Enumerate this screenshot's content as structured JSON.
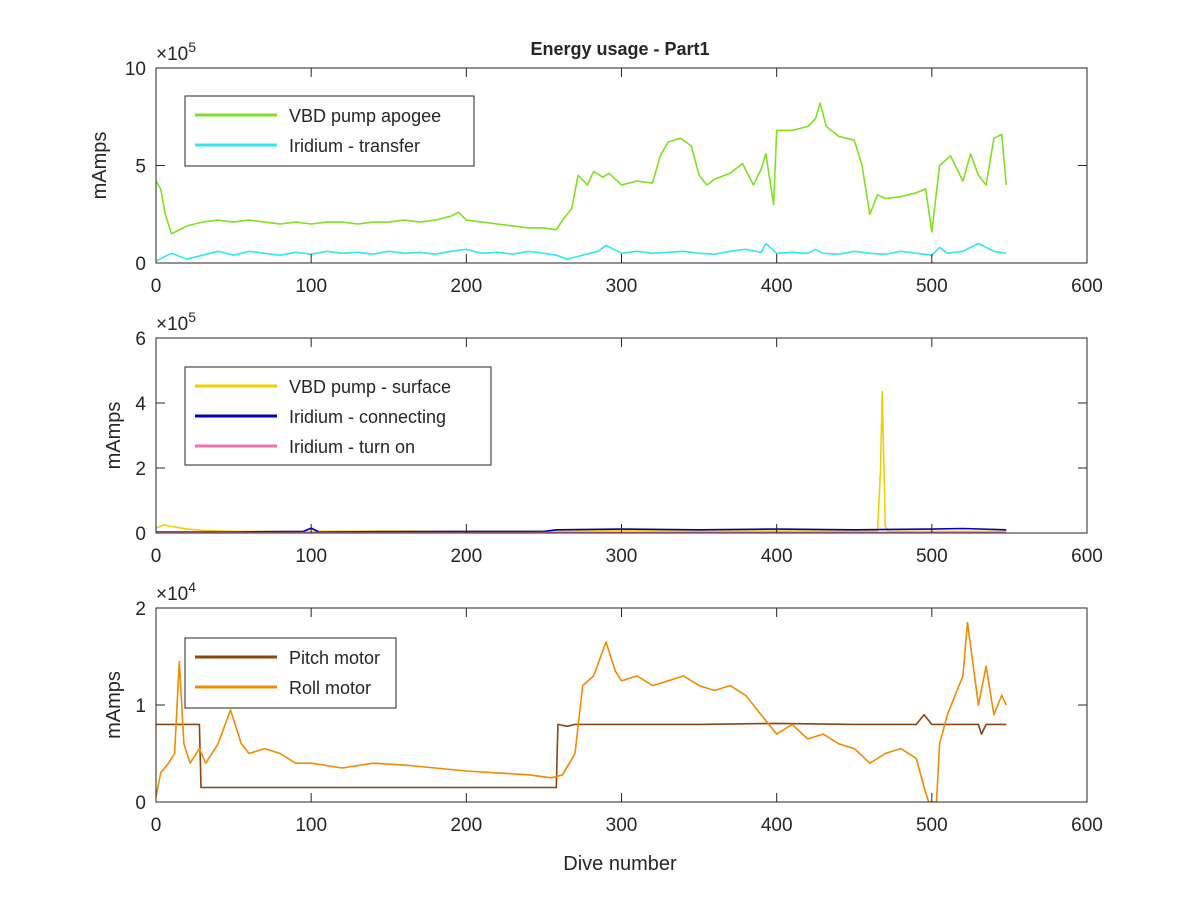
{
  "figure": {
    "title": "Energy usage - Part1",
    "xlabel": "Dive number"
  },
  "colors": {
    "axis": "#262626",
    "background": "#ffffff"
  },
  "chart_data": [
    {
      "type": "line",
      "ylabel": "mAmps",
      "exponent_label": "×10",
      "exponent": "5",
      "xlim": [
        0,
        600
      ],
      "ylim": [
        0,
        1000000
      ],
      "xticks": [
        0,
        100,
        200,
        300,
        400,
        500,
        600
      ],
      "yticks": [
        0,
        500000,
        1000000
      ],
      "ytick_labels": [
        "0",
        "5",
        "10"
      ],
      "legend_position": "top-left",
      "grid": false,
      "series": [
        {
          "name": "VBD pump apogee",
          "color": "#80e020",
          "x": [
            0,
            3,
            6,
            10,
            15,
            20,
            30,
            40,
            50,
            60,
            70,
            80,
            90,
            100,
            110,
            120,
            130,
            140,
            150,
            160,
            170,
            180,
            190,
            195,
            200,
            210,
            220,
            230,
            240,
            250,
            258,
            262,
            268,
            272,
            278,
            282,
            288,
            292,
            300,
            310,
            320,
            325,
            330,
            338,
            345,
            350,
            355,
            360,
            370,
            378,
            385,
            390,
            393,
            398,
            400,
            410,
            420,
            425,
            428,
            432,
            440,
            450,
            455,
            460,
            465,
            470,
            480,
            490,
            496,
            500,
            505,
            512,
            520,
            525,
            530,
            535,
            540,
            545,
            548
          ],
          "y": [
            420000,
            380000,
            250000,
            150000,
            170000,
            190000,
            210000,
            220000,
            210000,
            220000,
            210000,
            200000,
            210000,
            200000,
            210000,
            210000,
            200000,
            210000,
            210000,
            220000,
            210000,
            220000,
            240000,
            260000,
            220000,
            210000,
            200000,
            190000,
            180000,
            180000,
            170000,
            220000,
            280000,
            450000,
            400000,
            470000,
            440000,
            460000,
            400000,
            420000,
            410000,
            550000,
            620000,
            640000,
            600000,
            450000,
            400000,
            430000,
            460000,
            510000,
            400000,
            480000,
            560000,
            300000,
            680000,
            680000,
            700000,
            740000,
            820000,
            700000,
            650000,
            630000,
            500000,
            250000,
            350000,
            330000,
            340000,
            360000,
            380000,
            160000,
            500000,
            550000,
            420000,
            560000,
            450000,
            400000,
            640000,
            660000,
            400000
          ]
        },
        {
          "name": "Iridium - transfer",
          "color": "#30e8f0",
          "x": [
            0,
            5,
            10,
            20,
            30,
            40,
            50,
            60,
            70,
            80,
            90,
            100,
            110,
            120,
            130,
            140,
            150,
            160,
            170,
            180,
            190,
            200,
            210,
            220,
            230,
            240,
            250,
            258,
            265,
            275,
            285,
            290,
            300,
            310,
            320,
            330,
            340,
            350,
            360,
            370,
            380,
            390,
            393,
            400,
            410,
            420,
            425,
            430,
            440,
            450,
            460,
            470,
            480,
            490,
            500,
            505,
            510,
            520,
            530,
            540,
            548
          ],
          "y": [
            10000,
            30000,
            50000,
            20000,
            40000,
            60000,
            40000,
            60000,
            50000,
            40000,
            55000,
            45000,
            60000,
            50000,
            55000,
            45000,
            60000,
            50000,
            55000,
            45000,
            60000,
            70000,
            50000,
            55000,
            45000,
            60000,
            50000,
            40000,
            20000,
            40000,
            60000,
            90000,
            50000,
            60000,
            50000,
            55000,
            60000,
            50000,
            45000,
            60000,
            70000,
            55000,
            100000,
            50000,
            55000,
            50000,
            70000,
            50000,
            45000,
            60000,
            50000,
            45000,
            60000,
            50000,
            40000,
            80000,
            50000,
            60000,
            100000,
            60000,
            50000
          ]
        }
      ]
    },
    {
      "type": "line",
      "ylabel": "mAmps",
      "exponent_label": "×10",
      "exponent": "5",
      "xlim": [
        0,
        600
      ],
      "ylim": [
        0,
        600000
      ],
      "xticks": [
        0,
        100,
        200,
        300,
        400,
        500,
        600
      ],
      "yticks": [
        0,
        200000,
        400000,
        600000
      ],
      "ytick_labels": [
        "0",
        "2",
        "4",
        "6"
      ],
      "legend_position": "top-left",
      "grid": false,
      "series": [
        {
          "name": "VBD pump - surface",
          "color": "#f0d000",
          "x": [
            0,
            5,
            10,
            20,
            30,
            50,
            100,
            150,
            200,
            250,
            300,
            350,
            400,
            450,
            465,
            467,
            468,
            470,
            472,
            500,
            548
          ],
          "y": [
            15000,
            25000,
            20000,
            12000,
            8000,
            5000,
            5000,
            6000,
            5000,
            5000,
            8000,
            6000,
            6000,
            6000,
            6000,
            200000,
            435000,
            20000,
            5000,
            5000,
            5000
          ]
        },
        {
          "name": "Iridium - connecting",
          "color": "#0000c0",
          "x": [
            0,
            50,
            95,
            100,
            105,
            150,
            200,
            250,
            258,
            300,
            350,
            400,
            450,
            500,
            520,
            548
          ],
          "y": [
            3000,
            3000,
            5000,
            15000,
            3000,
            4000,
            5000,
            5000,
            10000,
            12000,
            10000,
            12000,
            10000,
            12000,
            14000,
            10000
          ]
        },
        {
          "name": "Iridium - turn on",
          "color": "#f070b0",
          "x": [
            0,
            100,
            200,
            300,
            400,
            500,
            548
          ],
          "y": [
            1000,
            1000,
            1000,
            2000,
            2000,
            2000,
            2000
          ]
        }
      ]
    },
    {
      "type": "line",
      "ylabel": "mAmps",
      "exponent_label": "×10",
      "exponent": "4",
      "xlim": [
        0,
        600
      ],
      "ylim": [
        0,
        20000
      ],
      "xticks": [
        0,
        100,
        200,
        300,
        400,
        500,
        600
      ],
      "yticks": [
        0,
        10000,
        20000
      ],
      "ytick_labels": [
        "0",
        "1",
        "2"
      ],
      "legend_position": "top-left",
      "grid": false,
      "series": [
        {
          "name": "Pitch motor",
          "color": "#8b4513",
          "x": [
            0,
            28,
            29,
            258,
            259,
            265,
            270,
            300,
            350,
            400,
            450,
            490,
            495,
            500,
            505,
            530,
            532,
            535,
            548
          ],
          "y": [
            8000,
            8000,
            1500,
            1500,
            8000,
            7800,
            8000,
            8000,
            8000,
            8100,
            8000,
            8000,
            9000,
            8000,
            8000,
            8000,
            7000,
            8000,
            8000
          ]
        },
        {
          "name": "Roll motor",
          "color": "#f08c00",
          "x": [
            0,
            3,
            8,
            12,
            15,
            18,
            22,
            28,
            32,
            40,
            48,
            55,
            60,
            70,
            80,
            90,
            100,
            120,
            140,
            160,
            180,
            200,
            220,
            240,
            255,
            262,
            270,
            275,
            282,
            290,
            296,
            300,
            310,
            320,
            330,
            340,
            350,
            360,
            370,
            380,
            390,
            400,
            410,
            420,
            430,
            440,
            450,
            460,
            470,
            480,
            490,
            495,
            498,
            503,
            505,
            510,
            515,
            520,
            523,
            530,
            535,
            540,
            545,
            548
          ],
          "y": [
            500,
            3000,
            4000,
            5000,
            14500,
            6000,
            4000,
            5500,
            4000,
            6000,
            9500,
            6000,
            5000,
            5500,
            5000,
            4000,
            4000,
            3500,
            4000,
            3800,
            3500,
            3200,
            3000,
            2800,
            2500,
            2800,
            5000,
            12000,
            13000,
            16500,
            13500,
            12500,
            13000,
            12000,
            12500,
            13000,
            12000,
            11500,
            12000,
            11000,
            9000,
            7000,
            8000,
            6500,
            7000,
            6000,
            5500,
            4000,
            5000,
            5500,
            4500,
            1500,
            0,
            0,
            6000,
            9000,
            11000,
            13000,
            18500,
            10000,
            14000,
            9000,
            11000,
            10000
          ]
        }
      ]
    }
  ]
}
